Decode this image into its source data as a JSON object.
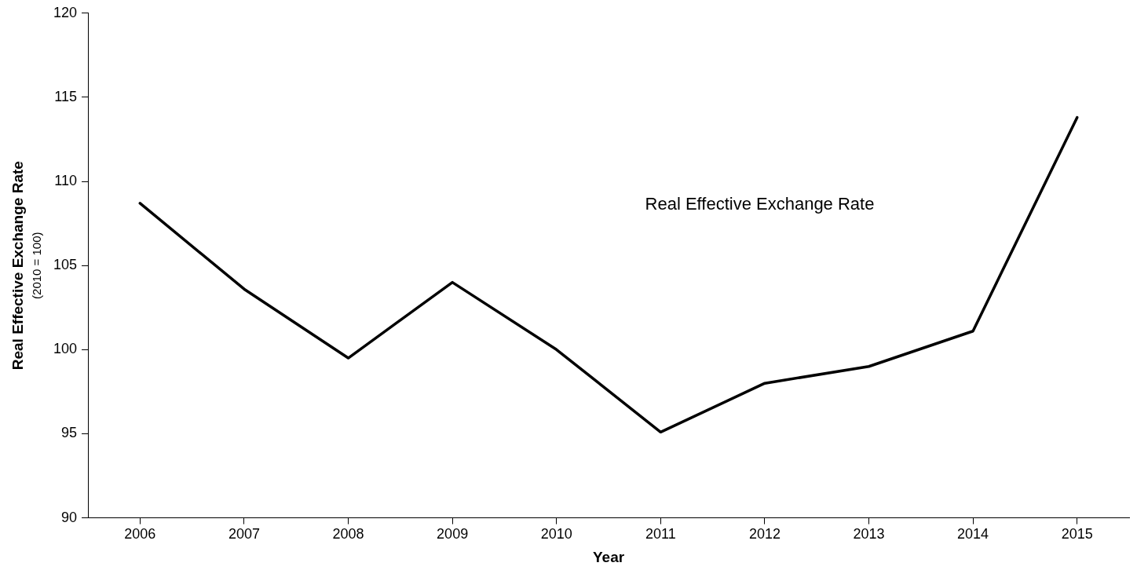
{
  "chart_data": {
    "type": "line",
    "xlabel": "Year",
    "ylabel": "Real Effective Exchange Rate\n(2010 = 100)",
    "categories": [
      "2006",
      "2007",
      "2008",
      "2009",
      "2010",
      "2011",
      "2012",
      "2013",
      "2014",
      "2015"
    ],
    "series": [
      {
        "name": "Real Effective Exchange Rate",
        "color": "#000000",
        "values": [
          108.7,
          103.6,
          99.5,
          104.0,
          100.0,
          95.1,
          98.0,
          99.0,
          101.1,
          113.8
        ]
      }
    ],
    "ylim": [
      90,
      120
    ],
    "yticks": [
      90,
      95,
      100,
      105,
      110,
      115,
      120
    ],
    "grid": false,
    "legend": false,
    "marker": "none",
    "line_style": "solid"
  }
}
